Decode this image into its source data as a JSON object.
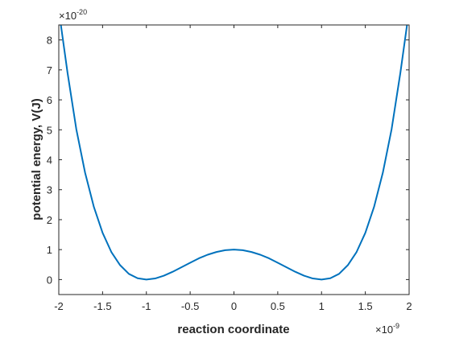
{
  "chart_data": {
    "type": "line",
    "title": "",
    "xlabel": "reaction coordinate",
    "ylabel": "potential energy, V(J)",
    "x_exponent": {
      "base": "×10",
      "power": "-9"
    },
    "y_exponent": {
      "base": "×10",
      "power": "-20"
    },
    "xlim": [
      -2,
      2
    ],
    "ylim": [
      -0.5,
      8.5
    ],
    "xticks": [
      -2,
      -1.5,
      -1,
      -0.5,
      0,
      0.5,
      1,
      1.5,
      2
    ],
    "xtick_labels": [
      "-2",
      "-1.5",
      "-1",
      "-0.5",
      "0",
      "0.5",
      "1",
      "1.5",
      "2"
    ],
    "yticks": [
      0,
      1,
      2,
      3,
      4,
      5,
      6,
      7,
      8
    ],
    "ytick_labels": [
      "0",
      "1",
      "2",
      "3",
      "4",
      "5",
      "6",
      "7",
      "8"
    ],
    "grid": false,
    "series": [
      {
        "color": "#0072BD",
        "x": [
          -2,
          -1.9,
          -1.8,
          -1.7,
          -1.6,
          -1.5,
          -1.4,
          -1.3,
          -1.2,
          -1.1,
          -1,
          -0.9,
          -0.8,
          -0.7,
          -0.6,
          -0.5,
          -0.4,
          -0.3,
          -0.2,
          -0.1,
          0,
          0.1,
          0.2,
          0.3,
          0.4,
          0.5,
          0.6,
          0.7,
          0.8,
          0.9,
          1,
          1.1,
          1.2,
          1.3,
          1.4,
          1.5,
          1.6,
          1.7,
          1.8,
          1.9,
          2
        ],
        "y": [
          9,
          6.9,
          5.02,
          3.57,
          2.43,
          1.56,
          0.92,
          0.48,
          0.19,
          0.044,
          0,
          0.036,
          0.13,
          0.26,
          0.41,
          0.56,
          0.71,
          0.83,
          0.92,
          0.98,
          1,
          0.98,
          0.92,
          0.83,
          0.71,
          0.56,
          0.41,
          0.26,
          0.13,
          0.036,
          0,
          0.044,
          0.19,
          0.48,
          0.92,
          1.56,
          2.43,
          3.57,
          5.02,
          6.9,
          9
        ]
      }
    ]
  }
}
